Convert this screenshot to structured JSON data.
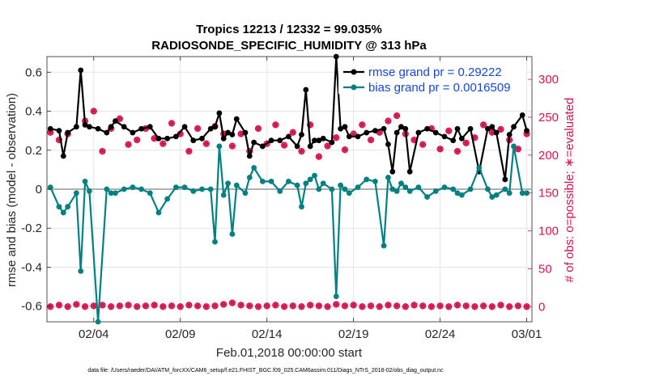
{
  "chart_data": {
    "type": "line",
    "title_line1": "Tropics 12213 / 12332 = 99.035%",
    "title_line2": "RADIOSONDE_SPECIFIC_HUMIDITY @ 313 hPa",
    "xlabel": "Feb.01,2018 00:00:00 start",
    "ylabel_left": "rmse and bias (model - observation)",
    "ylabel_right": "# of obs: o=possible; ∗=evaluated",
    "footnote": "data file: /Users/raeder/DAI/ATM_forcXX/CAM6_setup/f.e21.FHIST_BGC.f09_025.CAM6assim.011/Diags_NTrS_2018-02/obs_diag_output.nc",
    "xlim": [
      0.8,
      28.8
    ],
    "ylim_left": [
      -0.68,
      0.68
    ],
    "ylim_right": [
      -20,
      330
    ],
    "x_ticks": [
      {
        "v": 3.5,
        "label": "02/04"
      },
      {
        "v": 8.5,
        "label": "02/09"
      },
      {
        "v": 13.5,
        "label": "02/14"
      },
      {
        "v": 18.5,
        "label": "02/19"
      },
      {
        "v": 23.5,
        "label": "02/24"
      },
      {
        "v": 28.5,
        "label": "03/01"
      }
    ],
    "y_ticks_left": [
      {
        "v": 0.6,
        "label": "0.6"
      },
      {
        "v": 0.4,
        "label": "0.4"
      },
      {
        "v": 0.2,
        "label": "0.2"
      },
      {
        "v": 0,
        "label": "0"
      },
      {
        "v": -0.2,
        "label": "-0.2"
      },
      {
        "v": -0.4,
        "label": "-0.4"
      },
      {
        "v": -0.6,
        "label": "-0.6"
      }
    ],
    "y_ticks_right": [
      {
        "v": 300,
        "label": "300"
      },
      {
        "v": 250,
        "label": "250"
      },
      {
        "v": 200,
        "label": "200"
      },
      {
        "v": 150,
        "label": "150"
      },
      {
        "v": 100,
        "label": "100"
      },
      {
        "v": 50,
        "label": "50"
      },
      {
        "v": 0,
        "label": "0"
      }
    ],
    "series": [
      {
        "name": "rmse grand pr = 0.29222",
        "color": "#000000",
        "axis": "left",
        "x": [
          1,
          1.5,
          1.75,
          2,
          2.5,
          2.75,
          3,
          3.25,
          3.75,
          4.25,
          4.5,
          4.75,
          5.25,
          5.75,
          6.25,
          6.75,
          7.25,
          7.75,
          8.25,
          8.75,
          9.25,
          9.75,
          10.25,
          10.5,
          10.75,
          11,
          11.25,
          11.5,
          11.75,
          12.25,
          12.5,
          12.75,
          13.25,
          13.75,
          14.25,
          14.75,
          15.25,
          15.5,
          15.75,
          16,
          16.25,
          16.5,
          16.75,
          17.25,
          17.5,
          17.75,
          18,
          18.25,
          18.75,
          19.25,
          19.75,
          20.25,
          20.5,
          20.75,
          21,
          21.25,
          21.5,
          21.75,
          22.25,
          22.75,
          23.25,
          23.75,
          24.25,
          24.5,
          24.75,
          25.25,
          25.75,
          26.25,
          26.5,
          26.75,
          27.25,
          27.5,
          27.75,
          28.25,
          28.5
        ],
        "y": [
          0.31,
          0.3,
          0.17,
          0.29,
          0.32,
          0.61,
          0.33,
          0.32,
          0.31,
          0.29,
          0.32,
          0.35,
          0.32,
          0.29,
          0.31,
          0.32,
          0.26,
          0.26,
          0.27,
          0.32,
          0.25,
          0.26,
          0.31,
          0.32,
          0.39,
          0.26,
          0.29,
          0.28,
          0.36,
          0.29,
          0.17,
          0.24,
          0.22,
          0.25,
          0.25,
          0.27,
          0.22,
          0.28,
          0.51,
          0.22,
          0.25,
          0.25,
          0.26,
          0.24,
          0.68,
          0.31,
          0.32,
          0.27,
          0.27,
          0.29,
          0.3,
          0.31,
          0.23,
          0.09,
          0.29,
          0.32,
          0.31,
          0.09,
          0.29,
          0.31,
          0.29,
          0.27,
          0.25,
          0.31,
          0.26,
          0.31,
          0.09,
          0.31,
          0.32,
          0.29,
          0.05,
          0.28,
          0.32,
          0.38,
          0.3
        ],
        "marker": "circle"
      },
      {
        "name": "bias grand pr = 0.0016509",
        "color": "#008080",
        "axis": "left",
        "x": [
          1,
          1.5,
          1.75,
          2,
          2.5,
          2.75,
          3,
          3.25,
          3.75,
          4.25,
          4.5,
          4.75,
          5.25,
          5.75,
          6.25,
          6.75,
          7.25,
          7.75,
          8.25,
          8.75,
          9.25,
          9.75,
          10.25,
          10.5,
          10.75,
          11,
          11.25,
          11.5,
          11.75,
          12.25,
          12.5,
          12.75,
          13.25,
          13.75,
          14.25,
          14.75,
          15.25,
          15.5,
          15.75,
          16,
          16.25,
          16.5,
          16.75,
          17.25,
          17.5,
          17.75,
          18,
          18.25,
          18.75,
          19.25,
          19.75,
          20.25,
          20.5,
          20.75,
          21,
          21.25,
          21.5,
          21.75,
          22.25,
          22.75,
          23.25,
          23.75,
          24.25,
          24.5,
          24.75,
          25.25,
          25.75,
          26.25,
          26.5,
          26.75,
          27.25,
          27.5,
          27.75,
          28.25,
          28.5
        ],
        "y": [
          0.01,
          -0.09,
          -0.12,
          -0.09,
          -0.02,
          -0.42,
          0.04,
          -0.01,
          -0.68,
          0.0,
          -0.02,
          -0.02,
          0.0,
          0.01,
          0.0,
          -0.02,
          -0.12,
          -0.05,
          0.01,
          0.01,
          -0.01,
          0.0,
          0.0,
          -0.27,
          0.22,
          -0.03,
          0.03,
          -0.23,
          0.02,
          -0.02,
          0.06,
          0.11,
          0.04,
          0.04,
          -0.01,
          0.04,
          0.02,
          -0.09,
          0.03,
          0.05,
          0.07,
          0.0,
          0.03,
          0.0,
          -0.55,
          0.02,
          0.0,
          -0.02,
          0.01,
          0.05,
          0.04,
          -0.29,
          0.06,
          0.0,
          -0.01,
          0.03,
          0.01,
          -0.01,
          0.01,
          -0.04,
          -0.01,
          0.01,
          0.0,
          -0.02,
          -0.03,
          0.0,
          0.11,
          0.0,
          -0.04,
          -0.03,
          0.0,
          -0.02,
          0.22,
          -0.02,
          -0.02
        ],
        "marker": "circle"
      }
    ],
    "obs_counts": {
      "axis": "right",
      "color": "#d6124c",
      "label": "# of obs",
      "x_upper": [
        1,
        1.5,
        2,
        3,
        3.5,
        4,
        4.5,
        5,
        5.5,
        6,
        6.5,
        7,
        7.5,
        8,
        8.5,
        9,
        9.5,
        10,
        10.5,
        11,
        11.5,
        12,
        12.5,
        13,
        13.5,
        14,
        14.5,
        15,
        15.5,
        16,
        16.5,
        17,
        17.5,
        18,
        18.5,
        19,
        19.5,
        20,
        20.5,
        21,
        21.5,
        22,
        22.5,
        23,
        23.5,
        24,
        24.5,
        25,
        25.5,
        26,
        26.5,
        27,
        27.5,
        28,
        28.5
      ],
      "y_upper": [
        230,
        220,
        228,
        245,
        258,
        205,
        235,
        248,
        214,
        220,
        235,
        222,
        215,
        242,
        228,
        205,
        235,
        215,
        238,
        228,
        212,
        228,
        205,
        235,
        215,
        240,
        213,
        230,
        205,
        240,
        198,
        212,
        223,
        207,
        228,
        240,
        220,
        230,
        245,
        252,
        228,
        220,
        214,
        235,
        208,
        232,
        205,
        216,
        223,
        240,
        230,
        234,
        220,
        208,
        228
      ],
      "x_lower": [
        1,
        1.5,
        2,
        2.5,
        3,
        3.5,
        4,
        4.5,
        5,
        5.5,
        6,
        6.5,
        7,
        7.5,
        8,
        8.5,
        9,
        9.5,
        10,
        10.5,
        11,
        11.5,
        12,
        12.5,
        13,
        13.5,
        14,
        14.5,
        15,
        15.5,
        16,
        16.5,
        17,
        17.5,
        18,
        18.5,
        19,
        19.5,
        20,
        20.5,
        21,
        21.5,
        22,
        22.5,
        23,
        23.5,
        24,
        24.5,
        25,
        25.5,
        26,
        26.5,
        27,
        27.5,
        28,
        28.5
      ],
      "y_lower": [
        0,
        2,
        0,
        3,
        0,
        1,
        2,
        0,
        1,
        2,
        0,
        1,
        2,
        0,
        1,
        0,
        2,
        1,
        0,
        1,
        3,
        5,
        2,
        1,
        0,
        1,
        2,
        0,
        1,
        0,
        2,
        1,
        0,
        3,
        1,
        2,
        0,
        1,
        0,
        2,
        1,
        0,
        2,
        1,
        0,
        1,
        0,
        2,
        1,
        0,
        1,
        0,
        2,
        0,
        1,
        0
      ]
    },
    "legend_position": "top-right",
    "grid": true
  }
}
